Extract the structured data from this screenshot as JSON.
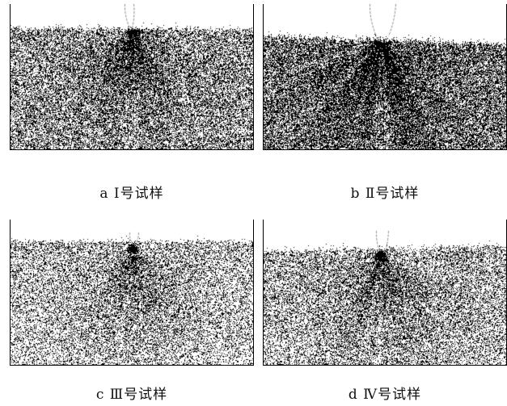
{
  "panels": [
    {
      "caption": "a Ⅰ号试样"
    },
    {
      "caption": "b Ⅱ号试样"
    },
    {
      "caption": "c Ⅲ号试样"
    },
    {
      "caption": "d Ⅳ号试样"
    }
  ]
}
